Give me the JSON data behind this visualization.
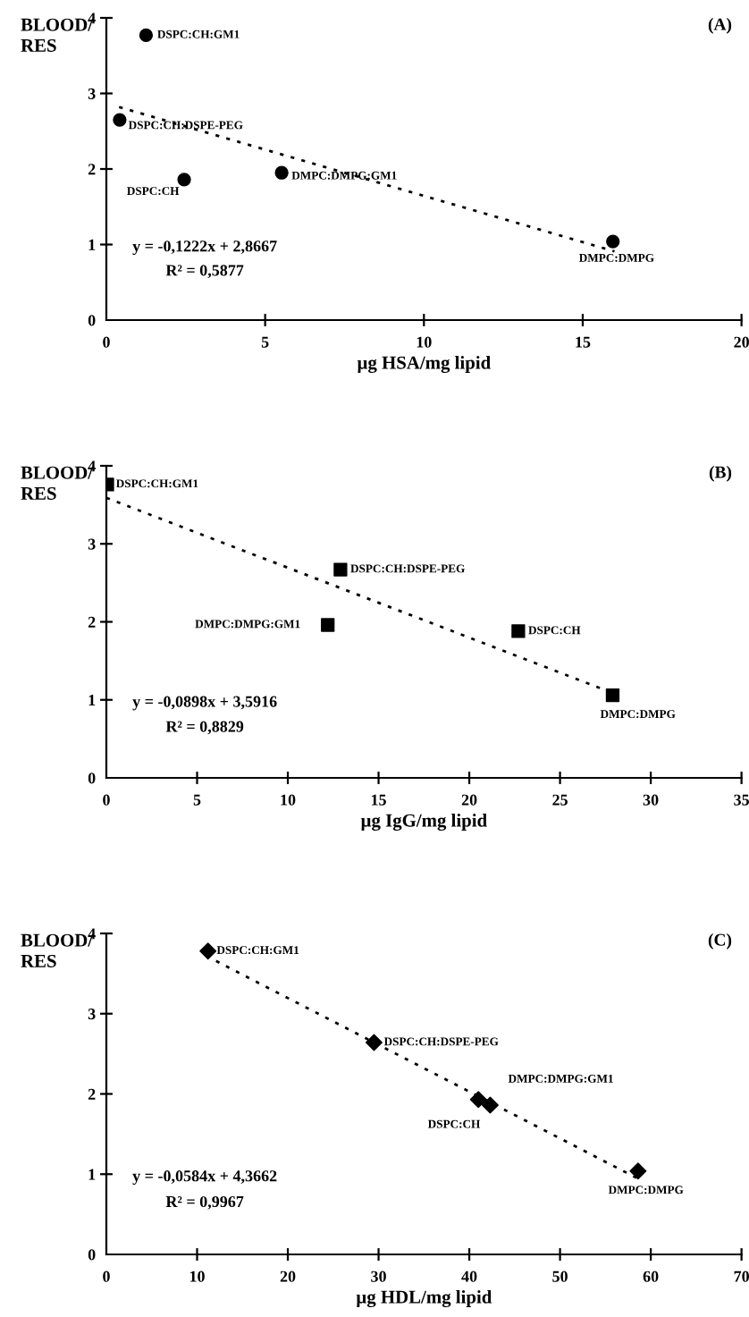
{
  "chart_data": [
    {
      "type": "scatter",
      "title": "(A)",
      "xlabel": "µg HSA/mg lipid",
      "ylabel": "BLOOD/\nRES",
      "xlim": [
        0,
        20
      ],
      "xticks": [
        0,
        5,
        10,
        15,
        20
      ],
      "ylim": [
        0,
        4
      ],
      "yticks": [
        0,
        1,
        2,
        3,
        4
      ],
      "marker": "circle",
      "series": [
        {
          "type": "scatter",
          "color": "#000000",
          "x": [
            1.25,
            0.42,
            2.45,
            5.52,
            15.95
          ],
          "values": [
            3.77,
            2.65,
            1.86,
            1.95,
            1.04
          ],
          "value_labels": [
            "DSPC:CH:GM1",
            "DSPC:CH:DSPE-PEG",
            "DSPC:CH",
            "DMPC:DMPG:GM1",
            "DMPC:DMPG"
          ]
        },
        {
          "type": "line",
          "color": "#000000",
          "line_style": "dotted",
          "marker": "none",
          "x": [
            0.4,
            16
          ],
          "values": [
            2.82,
            0.91
          ]
        }
      ],
      "annotations": [
        "y = -0,1222x + 2,8667",
        "R² = 0,5877"
      ]
    },
    {
      "type": "scatter",
      "title": "(B)",
      "xlabel": "µg IgG/mg lipid",
      "ylabel": "BLOOD/\nRES",
      "xlim": [
        0,
        35
      ],
      "xticks": [
        0,
        5,
        10,
        15,
        20,
        25,
        30,
        35
      ],
      "ylim": [
        0,
        4
      ],
      "yticks": [
        0,
        1,
        2,
        3,
        4
      ],
      "marker": "square",
      "series": [
        {
          "type": "scatter",
          "color": "#000000",
          "x": [
            0.05,
            12.9,
            12.2,
            22.7,
            27.9
          ],
          "values": [
            3.76,
            2.67,
            1.96,
            1.88,
            1.06
          ],
          "value_labels": [
            "DSPC:CH:GM1",
            "DSPC:CH:DSPE-PEG",
            "DMPC:DMPG:GM1",
            "DSPC:CH",
            "DMPC:DMPG"
          ]
        },
        {
          "type": "line",
          "color": "#000000",
          "line_style": "dotted",
          "marker": "none",
          "x": [
            0,
            28
          ],
          "values": [
            3.59,
            1.08
          ]
        }
      ],
      "annotations": [
        "y = -0,0898x + 3,5916",
        "R² = 0,8829"
      ]
    },
    {
      "type": "scatter",
      "title": "(C)",
      "xlabel": "µg HDL/mg lipid",
      "ylabel": "BLOOD/\nRES",
      "xlim": [
        0,
        70
      ],
      "xticks": [
        0,
        10,
        20,
        30,
        40,
        50,
        60,
        70
      ],
      "ylim": [
        0,
        4
      ],
      "yticks": [
        0,
        1,
        2,
        3,
        4
      ],
      "marker": "diamond",
      "series": [
        {
          "type": "scatter",
          "color": "#000000",
          "x": [
            11.2,
            29.5,
            41.0,
            42.3,
            58.6
          ],
          "values": [
            3.78,
            2.64,
            1.93,
            1.86,
            1.04
          ],
          "value_labels": [
            "DSPC:CH:GM1",
            "DSPC:CH:DSPE-PEG",
            "DMPC:DMPG:GM1",
            "DSPC:CH",
            "DMPC:DMPG"
          ]
        },
        {
          "type": "line",
          "color": "#000000",
          "line_style": "dotted",
          "marker": "none",
          "x": [
            11,
            58.5
          ],
          "values": [
            3.72,
            0.95
          ]
        }
      ],
      "annotations": [
        "y = -0,0584x + 4,3662",
        "R² = 0,9967"
      ]
    }
  ]
}
